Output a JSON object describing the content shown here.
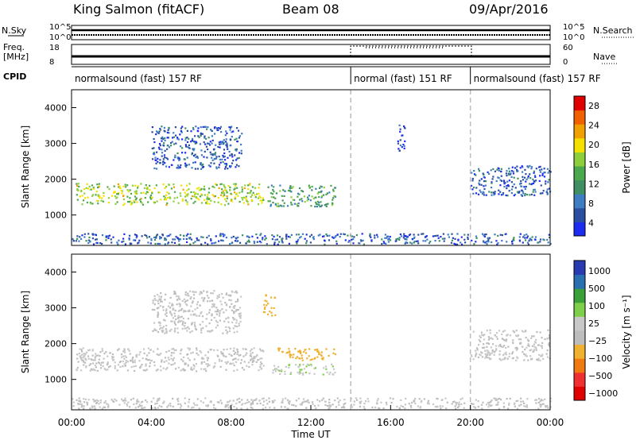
{
  "header": {
    "station": "King Salmon (fitACF)",
    "beam": "Beam 08",
    "date": "09/Apr/2016"
  },
  "left_labels": {
    "nsky": "N.Sky",
    "freq": "Freq.",
    "mhz": "[MHz]",
    "cpid": "CPID",
    "nsky_ticks": [
      "10^5",
      "10^0"
    ],
    "freq_ticks": [
      "18",
      "8"
    ]
  },
  "right_labels": {
    "nsearch": "N.Search",
    "nave": "Nave",
    "nsearch_ticks": [
      "10^5",
      "10^0"
    ],
    "nave_ticks": [
      "60",
      "0"
    ]
  },
  "cpid_segments": [
    {
      "label": "normalsound (fast) 157 RF",
      "start_h": 0,
      "end_h": 14
    },
    {
      "label": "normal (fast) 151 RF",
      "start_h": 14,
      "end_h": 20
    },
    {
      "label": "normalsound (fast) 157 RF",
      "start_h": 20,
      "end_h": 24
    }
  ],
  "colors": {
    "power_scale": [
      "#1e2bf0",
      "#2a4fa0",
      "#3e7dc2",
      "#3f8f62",
      "#4ca84c",
      "#8ccf3a",
      "#f5e100",
      "#f0a000",
      "#f06000",
      "#e00000"
    ],
    "velocity_scale": [
      "#e00000",
      "#f03030",
      "#f07a10",
      "#f0b030",
      "#bdbdbd",
      "#c8c8c8",
      "#7ed04a",
      "#39a03a",
      "#2a6fb0",
      "#2a3ab0"
    ],
    "dashed_line": "#bdbdbd"
  },
  "chart_data": [
    {
      "type": "heatmap",
      "title": "",
      "xlabel": "Time UT",
      "ylabel": "Slant Range [km]",
      "x_ticks": [
        "00:00",
        "04:00",
        "08:00",
        "12:00",
        "16:00",
        "20:00",
        "00:00"
      ],
      "y_ticks": [
        "1000",
        "2000",
        "3000",
        "4000"
      ],
      "ylim": [
        150,
        4500
      ],
      "xlim_hours": [
        0,
        24
      ],
      "mode_change_hours": [
        14,
        20
      ],
      "colorbar": {
        "label": "Power [dB]",
        "ticks": [
          "4",
          "8",
          "12",
          "16",
          "20",
          "24",
          "28"
        ],
        "range": [
          0,
          32
        ]
      },
      "scatter_regions": [
        {
          "t0": 0.2,
          "t1": 9.6,
          "r0": 1300,
          "r1": 1900,
          "value": 18
        },
        {
          "t0": 4.0,
          "t1": 8.5,
          "r0": 2300,
          "r1": 3500,
          "value": 6
        },
        {
          "t0": 9.8,
          "t1": 13.2,
          "r0": 1250,
          "r1": 1850,
          "value": 12
        },
        {
          "t0": 16.3,
          "t1": 16.7,
          "r0": 2800,
          "r1": 3600,
          "value": 5
        },
        {
          "t0": 20.0,
          "t1": 24.0,
          "r0": 1550,
          "r1": 2400,
          "value": 6
        },
        {
          "t0": 0.0,
          "t1": 24.0,
          "r0": 200,
          "r1": 500,
          "value": 6
        }
      ]
    },
    {
      "type": "heatmap",
      "title": "",
      "xlabel": "Time UT",
      "ylabel": "Slant Range [km]",
      "x_ticks": [
        "00:00",
        "04:00",
        "08:00",
        "12:00",
        "16:00",
        "20:00",
        "00:00"
      ],
      "y_ticks": [
        "1000",
        "2000",
        "3000",
        "4000"
      ],
      "ylim": [
        150,
        4500
      ],
      "xlim_hours": [
        0,
        24
      ],
      "mode_change_hours": [
        14,
        20
      ],
      "colorbar": {
        "label": "Velocity [m s⁻¹]",
        "ticks": [
          "1000",
          "500",
          "100",
          "25",
          "−25",
          "−100",
          "−500",
          "−1000"
        ],
        "range": [
          -1000,
          1000
        ]
      },
      "scatter_regions": [
        {
          "t0": 0.2,
          "t1": 9.6,
          "r0": 1250,
          "r1": 1900,
          "value": 0
        },
        {
          "t0": 4.0,
          "t1": 8.5,
          "r0": 2300,
          "r1": 3500,
          "value": 0
        },
        {
          "t0": 9.6,
          "t1": 10.2,
          "r0": 2800,
          "r1": 3400,
          "value": -300
        },
        {
          "t0": 10.3,
          "t1": 13.2,
          "r0": 1550,
          "r1": 1900,
          "value": -300
        },
        {
          "t0": 10.0,
          "t1": 13.2,
          "r0": 1150,
          "r1": 1450,
          "value": 150
        },
        {
          "t0": 20.0,
          "t1": 24.0,
          "r0": 1550,
          "r1": 2400,
          "value": 0
        },
        {
          "t0": 0.0,
          "t1": 24.0,
          "r0": 200,
          "r1": 500,
          "value": 0
        }
      ]
    }
  ]
}
